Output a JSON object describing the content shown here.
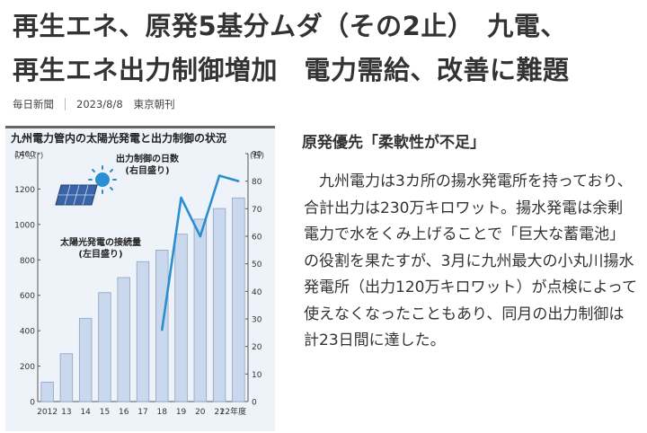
{
  "article": {
    "headline_line1": "再生エネ、原発5基分ムダ（その2止）　九電、",
    "headline_line2": "再生エネ出力制御増加　電力需給、改善に難題",
    "source": "毎日新聞",
    "date": "2023/8/8",
    "edition": "東京朝刊",
    "section_title": "原発優先「柔軟性が不足」",
    "body": "九州電力は3カ所の揚水発電所を持っており、合計出力は230万キロワット。揚水発電は余剰電力で水をくみ上げることで「巨大な蓄電池」の役割を果たすが、3月に九州最大の小丸川揚水発電所（出力120万キロワット）が点検によって使えなくなったこともあり、同月の出力制御は計23日間に達した。"
  },
  "colors": {
    "bar_fill": "#c9d8ec",
    "bar_stroke": "#8aa4c4",
    "line": "#2a8fd0",
    "panel_bg": "#eef3f9",
    "sun": "#2a8fd0"
  },
  "icons": [
    "sun-icon",
    "solar-panel-icon"
  ],
  "chart_data": {
    "type": "bar",
    "title": "九州電力管内の太陽光発電と出力制御の状況",
    "left_unit": "(万㌔㍗)",
    "right_unit": "(日)",
    "categories": [
      "2012",
      "13",
      "14",
      "15",
      "16",
      "17",
      "18",
      "19",
      "20",
      "21",
      "22年度"
    ],
    "left_ticks": [
      "0",
      "200",
      "400",
      "600",
      "800",
      "1000",
      "1200",
      "1400"
    ],
    "right_ticks": [
      "0",
      "10",
      "20",
      "30",
      "40",
      "50",
      "60",
      "70",
      "80",
      "90"
    ],
    "ylim_left": [
      0,
      1400
    ],
    "ylim_right": [
      0,
      90
    ],
    "series": [
      {
        "name": "太陽光発電の接続量",
        "axis_label": "(左目盛り)",
        "type": "bar",
        "axis": "left",
        "values": [
          110,
          270,
          470,
          615,
          700,
          790,
          855,
          945,
          1030,
          1090,
          1150
        ]
      },
      {
        "name": "出力制御の日数",
        "axis_label": "(右目盛り)",
        "type": "line",
        "axis": "right",
        "values": [
          null,
          null,
          null,
          null,
          null,
          null,
          26,
          74,
          60,
          82,
          80
        ]
      }
    ]
  }
}
